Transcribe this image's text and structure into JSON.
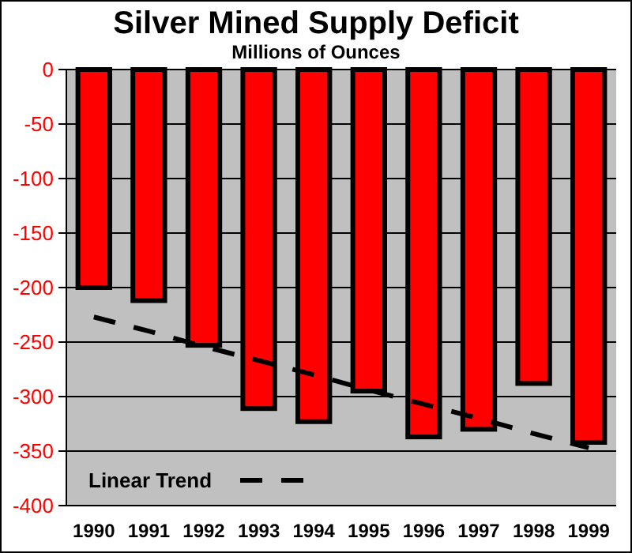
{
  "chart_data": {
    "type": "bar",
    "title": "Silver Mined Supply Deficit",
    "subtitle": "Millions of Ounces",
    "categories": [
      "1990",
      "1991",
      "1992",
      "1993",
      "1994",
      "1995",
      "1996",
      "1997",
      "1998",
      "1999"
    ],
    "series": [
      {
        "color": "#ff0000",
        "values": [
          -200,
          -212,
          -253,
          -311,
          -323,
          -295,
          -337,
          -330,
          -288,
          -342
        ]
      },
      {
        "type": "line",
        "name": "Linear Trend",
        "color": "#000000",
        "line_style": "dashed",
        "values": [
          -227,
          -240,
          -254,
          -267,
          -280,
          -294,
          -307,
          -320,
          -334,
          -347
        ]
      }
    ],
    "ylim": [
      -400,
      0
    ],
    "yticks": [
      0,
      -50,
      -100,
      -150,
      -200,
      -250,
      -300,
      -350,
      -400
    ],
    "grid": "y",
    "legend": "bottom left"
  }
}
